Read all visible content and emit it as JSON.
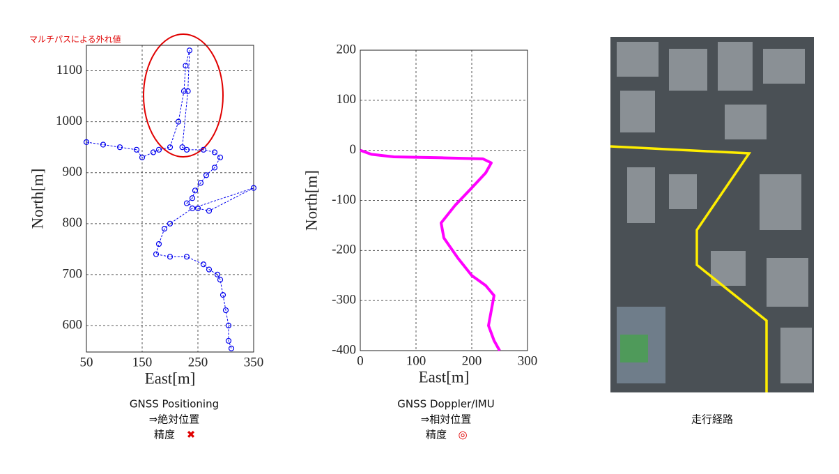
{
  "chart_data": [
    {
      "type": "scatter",
      "annotation": "マルチパスによる外れ値",
      "xlabel": "East[m]",
      "ylabel": "North[m]",
      "color": "#0000ee",
      "grid": true,
      "xlim": [
        50,
        350
      ],
      "xticks": [
        50,
        150,
        250,
        350
      ],
      "ylim": [
        548,
        1150
      ],
      "yticks": [
        600,
        700,
        800,
        900,
        1000,
        1100
      ],
      "x": [
        50,
        80,
        110,
        140,
        150,
        170,
        180,
        200,
        215,
        225,
        228,
        235,
        232,
        222,
        230,
        260,
        280,
        290,
        280,
        265,
        255,
        245,
        240,
        230,
        250,
        270,
        350,
        240,
        200,
        190,
        180,
        175,
        200,
        230,
        260,
        270,
        285,
        290,
        295,
        300,
        305,
        305,
        310
      ],
      "values": [
        960,
        955,
        950,
        945,
        930,
        940,
        945,
        950,
        1000,
        1060,
        1110,
        1140,
        1060,
        950,
        945,
        945,
        940,
        930,
        910,
        895,
        880,
        865,
        850,
        840,
        830,
        825,
        870,
        830,
        800,
        790,
        760,
        740,
        735,
        735,
        720,
        710,
        700,
        690,
        660,
        630,
        600,
        570,
        555
      ]
    },
    {
      "type": "line",
      "xlabel": "East[m]",
      "ylabel": "North[m]",
      "color": "#ff00ff",
      "grid": true,
      "xlim": [
        0,
        300
      ],
      "xticks": [
        0,
        100,
        200,
        300
      ],
      "ylim": [
        -400,
        200
      ],
      "yticks": [
        200,
        100,
        0,
        -100,
        -200,
        -300,
        -400
      ],
      "x": [
        0,
        20,
        60,
        150,
        220,
        235,
        225,
        200,
        170,
        145,
        150,
        175,
        200,
        225,
        240,
        235,
        230,
        240,
        250
      ],
      "values": [
        0,
        -8,
        -13,
        -15,
        -17,
        -25,
        -45,
        -75,
        -110,
        -145,
        -175,
        -215,
        -250,
        -270,
        -290,
        -320,
        -350,
        -380,
        -400
      ]
    }
  ],
  "captions": [
    [
      "GNSS Positioning",
      "⇒絶対位置",
      "精度",
      "✖"
    ],
    [
      "GNSS Doppler/IMU",
      "⇒相対位置",
      "精度",
      "◎"
    ],
    [
      "走行経路"
    ]
  ]
}
